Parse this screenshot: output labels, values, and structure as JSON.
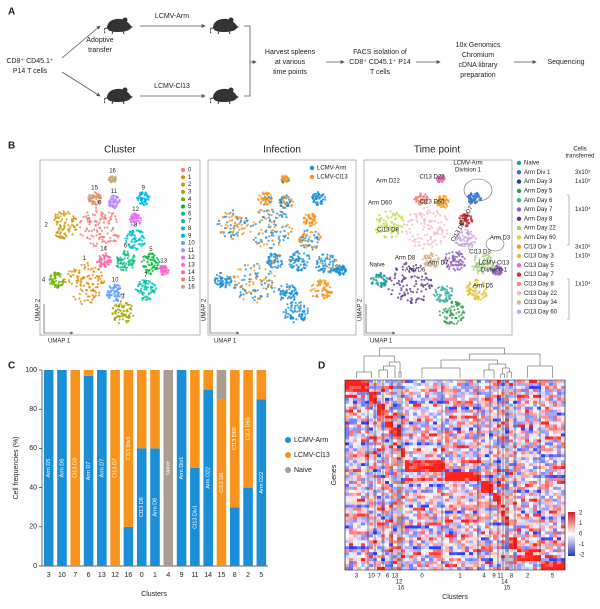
{
  "panel_labels": [
    "A",
    "B",
    "C",
    "D"
  ],
  "schematic": {
    "source": [
      "CD8⁺ CD45.1⁺",
      "P14 T cells"
    ],
    "transfer": [
      "Adoptive",
      "transfer"
    ],
    "infections": [
      "LCMV-Arm",
      "LCMV-Cl13"
    ],
    "steps": [
      [
        "Harvest spleens",
        "at various",
        "time points"
      ],
      [
        "FACS isolation of",
        "CD8⁺ CD45.1⁺ P14",
        "T cells"
      ],
      [
        "10x Genomics",
        "Chromium",
        "cDNA library",
        "preparation"
      ],
      [
        "Sequencing"
      ]
    ]
  },
  "umap": {
    "titles": [
      "Cluster",
      "Infection",
      "Time point"
    ],
    "x_label": "UMAP 1",
    "y_label": "UMAP 2",
    "cluster_legend": [
      {
        "name": "0",
        "color": "#f8766d"
      },
      {
        "name": "1",
        "color": "#e58700"
      },
      {
        "name": "2",
        "color": "#c99800"
      },
      {
        "name": "3",
        "color": "#a3a500"
      },
      {
        "name": "4",
        "color": "#6bb100"
      },
      {
        "name": "5",
        "color": "#00ba38"
      },
      {
        "name": "6",
        "color": "#00bf7d"
      },
      {
        "name": "7",
        "color": "#00c0af"
      },
      {
        "name": "8",
        "color": "#00bcd8"
      },
      {
        "name": "9",
        "color": "#00b0f6"
      },
      {
        "name": "10",
        "color": "#619cff"
      },
      {
        "name": "11",
        "color": "#b983ff"
      },
      {
        "name": "12",
        "color": "#e76bf3"
      },
      {
        "name": "13",
        "color": "#fd61d1"
      },
      {
        "name": "14",
        "color": "#ff67a4"
      },
      {
        "name": "15",
        "color": "#d98c5f"
      },
      {
        "name": "16",
        "color": "#c9a77a"
      }
    ],
    "infection_legend": [
      {
        "name": "LCMV-Arm",
        "color": "#1a8fd8"
      },
      {
        "name": "LCMV-Cl13",
        "color": "#f7941d"
      }
    ],
    "time_legend": [
      {
        "name": "Naive",
        "color": "#1b9e9e"
      },
      {
        "name": "Arm Div 1",
        "color": "#2e6fd8"
      },
      {
        "name": "Arm Day 3",
        "color": "#1f3f9a"
      },
      {
        "name": "Arm Day 5",
        "color": "#2e9e4a"
      },
      {
        "name": "Arm Day 6",
        "color": "#3ab39a"
      },
      {
        "name": "Arm Day 7",
        "color": "#8e5fc4"
      },
      {
        "name": "Arm Day 8",
        "color": "#5b3c8f"
      },
      {
        "name": "Arm Day 22",
        "color": "#9ed07a"
      },
      {
        "name": "Arm Day 60",
        "color": "#c7d94a"
      },
      {
        "name": "Cl13 Div 1",
        "color": "#f39a1f"
      },
      {
        "name": "Cl13 Day 3",
        "color": "#e3c02a"
      },
      {
        "name": "Cl13 Day 5",
        "color": "#e76bb0"
      },
      {
        "name": "Cl13 Day 7",
        "color": "#d62f2f"
      },
      {
        "name": "Cl13 Day 8",
        "color": "#f08a78"
      },
      {
        "name": "Cl13 Day 22",
        "color": "#f5b8c8"
      },
      {
        "name": "Cl13 Day 34",
        "color": "#d9b48a"
      },
      {
        "name": "Cl13 Day 60",
        "color": "#c3a8e0"
      }
    ],
    "cells_transferred_title": [
      "Cells",
      "transferred"
    ],
    "cells_transferred": [
      "3x10⁵",
      "1x10⁵",
      "1x10⁴",
      "3x10⁵",
      "1x10⁵",
      "1x10⁴"
    ],
    "time_annotations": [
      "Arm D22",
      "Cl13 D22",
      "LCMV-Arm",
      "Division 1",
      "Arm D60",
      "Cl13 D60",
      "Cl13 D7",
      "Arm D3",
      "Cl13 D8",
      "Cl13 D5",
      "Cl13 D3",
      "LCMV-Cl13",
      "Division 1",
      "Naive",
      "Arm D8",
      "Arm D7",
      "Arm D6",
      "Arm D5"
    ]
  },
  "chart_data": {
    "type": "bar",
    "stacked": true,
    "ylabel": "Cell frequencies (%)",
    "xlabel": "Clusters",
    "categories": [
      "3",
      "10",
      "7",
      "6",
      "13",
      "12",
      "16",
      "0",
      "1",
      "4",
      "9",
      "11",
      "14",
      "15",
      "8",
      "2",
      "5"
    ],
    "series": [
      {
        "name": "LCMV-Arm",
        "color": "#1a8fd8",
        "values": [
          100,
          100,
          0,
          97,
          100,
          0,
          20,
          60,
          60,
          0,
          100,
          50,
          90,
          0,
          30,
          40,
          85
        ]
      },
      {
        "name": "LCMV-Cl13",
        "color": "#f7941d",
        "values": [
          0,
          0,
          100,
          3,
          0,
          100,
          80,
          40,
          40,
          0,
          0,
          50,
          10,
          85,
          70,
          60,
          15
        ]
      },
      {
        "name": "Naive",
        "color": "#a89f91",
        "values": [
          0,
          0,
          0,
          0,
          0,
          0,
          0,
          0,
          0,
          100,
          0,
          0,
          0,
          15,
          0,
          0,
          0
        ]
      }
    ],
    "bar_labels": [
      "Arm D5",
      "Arm D6",
      "Cl13 D3",
      "Arm D7",
      "Arm D7",
      "Cl13 D7",
      "Cl13 Div1",
      "Cl13 D8",
      "Arm D8",
      "Naive",
      "Arm Div1",
      "Cl13 Div1",
      "Arm D22",
      "Cl13 D8",
      "Cl13 D60",
      "Cl13 D60",
      "Arm D22"
    ],
    "ylim": [
      0,
      100
    ],
    "yticks": [
      0,
      20,
      40,
      60,
      80,
      100
    ]
  },
  "heatmap": {
    "y_label": "Genes",
    "x_label": "Clusters",
    "cluster_labels": [
      "3",
      "10",
      "7",
      "6",
      "13",
      "12",
      "16",
      "0",
      "1",
      "4",
      "9",
      "11",
      "14",
      "15",
      "8",
      "2",
      "5"
    ],
    "colorbar_ticks": [
      "2",
      "1",
      "0",
      "-1",
      "-2"
    ]
  }
}
